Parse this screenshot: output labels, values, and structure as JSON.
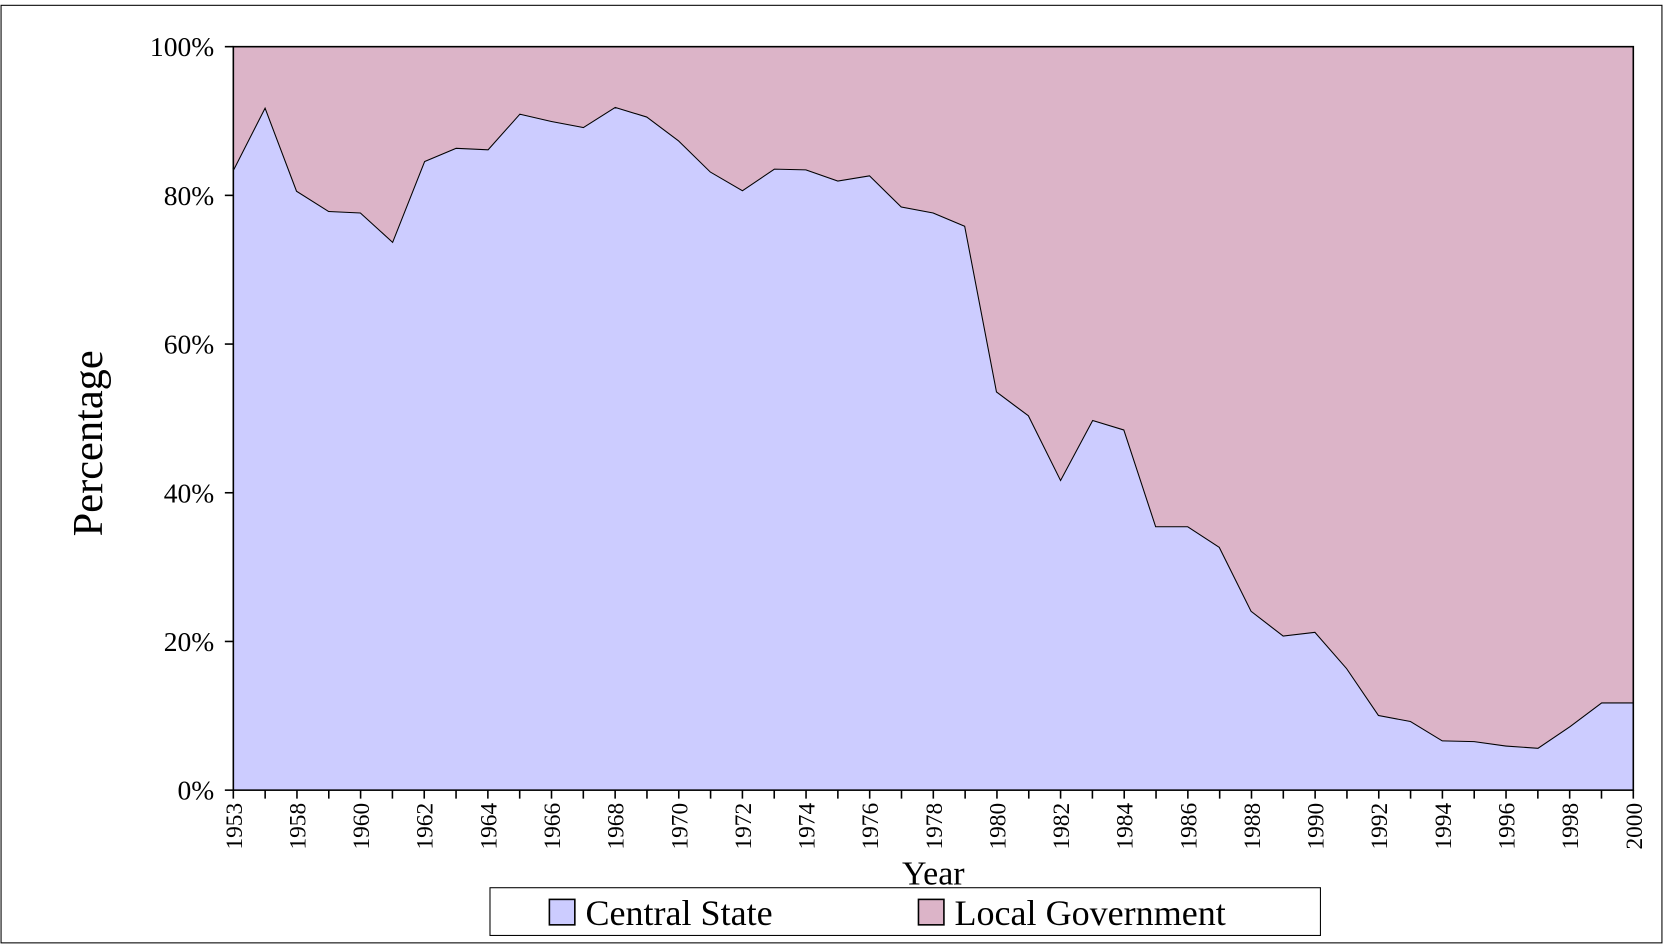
{
  "chart_data": {
    "type": "stacked_area",
    "x_label": "Year",
    "y_label": "Percentage",
    "categories": [
      "1953",
      null,
      "1958",
      null,
      "1960",
      null,
      "1962",
      null,
      "1964",
      null,
      "1966",
      null,
      "1968",
      null,
      "1970",
      null,
      "1972",
      null,
      "1974",
      null,
      "1976",
      null,
      "1978",
      null,
      "1980",
      null,
      "1982",
      null,
      "1984",
      null,
      "1986",
      null,
      "1988",
      null,
      "1990",
      null,
      "1992",
      null,
      "1994",
      null,
      "1996",
      null,
      "1998",
      null,
      "2000"
    ],
    "series": [
      {
        "name": "Central State",
        "color": "#ccccff",
        "values": [
          83.5,
          91.9,
          80.6,
          77.9,
          77.7,
          73.8,
          84.6,
          86.4,
          86.2,
          91.0,
          90.0,
          89.2,
          91.9,
          90.6,
          87.4,
          83.2,
          80.7,
          83.6,
          83.5,
          82.0,
          82.7,
          78.5,
          77.7,
          75.9,
          53.6,
          50.4,
          41.8,
          49.8,
          48.5,
          35.5,
          35.5,
          32.7,
          24.1,
          20.8,
          21.3,
          16.4,
          10.1,
          9.3,
          6.7,
          6.6,
          6.0,
          5.7,
          8.6,
          11.8,
          11.8
        ]
      },
      {
        "name": "Local Government",
        "color": "#dcb4c8",
        "values": [
          16.5,
          8.1,
          19.4,
          22.1,
          22.3,
          26.2,
          15.4,
          13.6,
          13.8,
          9.0,
          10.0,
          10.8,
          8.1,
          9.4,
          12.6,
          16.8,
          19.3,
          16.4,
          16.5,
          18.0,
          17.3,
          21.5,
          22.3,
          24.1,
          46.4,
          49.6,
          58.2,
          50.2,
          51.5,
          64.5,
          64.5,
          67.3,
          75.9,
          79.2,
          78.7,
          83.6,
          89.9,
          90.7,
          93.3,
          93.4,
          94.0,
          94.3,
          91.4,
          88.2,
          88.2
        ]
      }
    ],
    "ylim": [
      0,
      100
    ],
    "yticks": [
      {
        "value": 0,
        "label": "0%"
      },
      {
        "value": 20,
        "label": "20%"
      },
      {
        "value": 40,
        "label": "40%"
      },
      {
        "value": 60,
        "label": "60%"
      },
      {
        "value": 80,
        "label": "80%"
      },
      {
        "value": 100,
        "label": "100%"
      }
    ],
    "legend": "bottom"
  }
}
